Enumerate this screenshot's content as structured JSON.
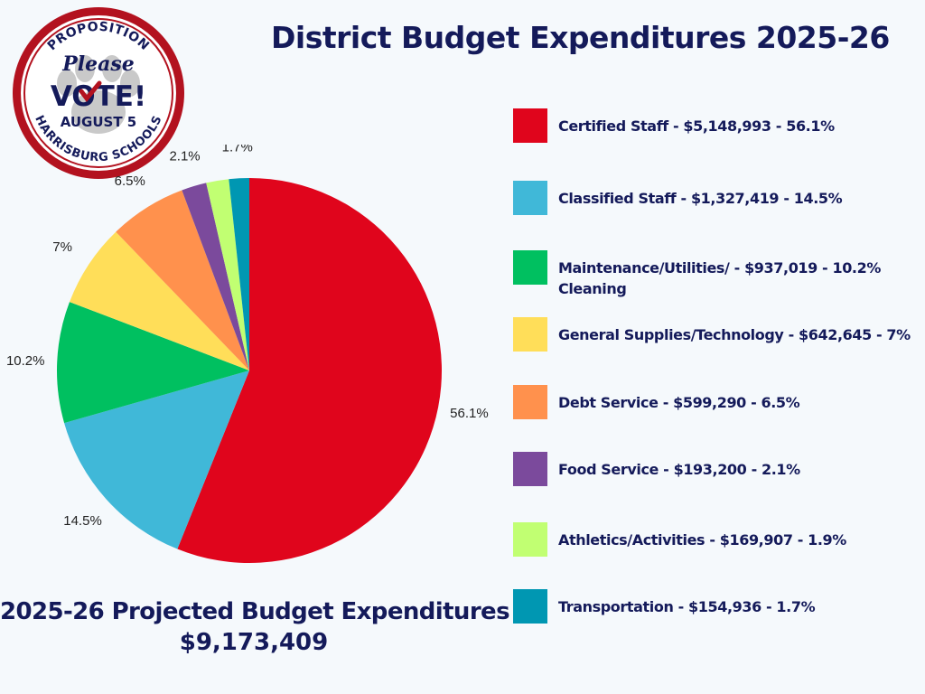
{
  "title": "District Budget Expenditures 2025-26",
  "badge": {
    "top_text": "PROPOSITION",
    "script_text": "Please",
    "main_text": "VOTE!",
    "date_text": "AUGUST 5",
    "bottom_text": "HARRISBURG SCHOOLS",
    "ring_color": "#b3121f"
  },
  "chart_data": {
    "type": "pie",
    "slices": [
      {
        "label": "Certified Staff",
        "amount": "$5,148,993",
        "value": 56.1,
        "value_label": "56.1%",
        "color": "#e0051c"
      },
      {
        "label": "Classified Staff",
        "amount": "$1,327,419",
        "value": 14.5,
        "value_label": "14.5%",
        "color": "#40b8d8"
      },
      {
        "label": "Maintenance/Utilities/Cleaning",
        "amount": "$937,019",
        "value": 10.2,
        "value_label": "10.2%",
        "color": "#00c060"
      },
      {
        "label": "General Supplies/Technology",
        "amount": "$642,645",
        "value": 7,
        "value_label": "7%",
        "color": "#ffde59"
      },
      {
        "label": "Debt Service",
        "amount": "$599,290",
        "value": 6.5,
        "value_label": "6.5%",
        "color": "#ff914d"
      },
      {
        "label": "Food Service",
        "amount": "$193,200",
        "value": 2.1,
        "value_label": "2.1%",
        "color": "#7b4a9c"
      },
      {
        "label": "Athletics/Activities",
        "amount": "$169,907",
        "value": 1.9,
        "value_label": "",
        "color": "#c1ff72"
      },
      {
        "label": "Transportation",
        "amount": "$154,936",
        "value": 1.7,
        "value_label": "1.7%",
        "color": "#0097b2"
      }
    ]
  },
  "legend": {
    "items": [
      {
        "text": "Certified Staff  - $5,148,993 - 56.1%",
        "color": "#e0051c"
      },
      {
        "text": "Classified Staff - $1,327,419 - 14.5%",
        "color": "#40b8d8"
      },
      {
        "text": "Maintenance/Utilities/ - $937,019 - 10.2% Cleaning",
        "color": "#00c060"
      },
      {
        "text": "General Supplies/Technology - $642,645 - 7%",
        "color": "#ffde59"
      },
      {
        "text": "Debt Service - $599,290 - 6.5%",
        "color": "#ff914d"
      },
      {
        "text": "Food Service - $193,200 - 2.1%",
        "color": "#7b4a9c"
      },
      {
        "text": "Athletics/Activities - $169,907 - 1.9%",
        "color": "#c1ff72"
      },
      {
        "text": "Transportation - $154,936 - 1.7%",
        "color": "#0097b2"
      }
    ]
  },
  "footer": {
    "title": "2025-26 Projected Budget Expenditures",
    "total": "$9,173,409"
  }
}
